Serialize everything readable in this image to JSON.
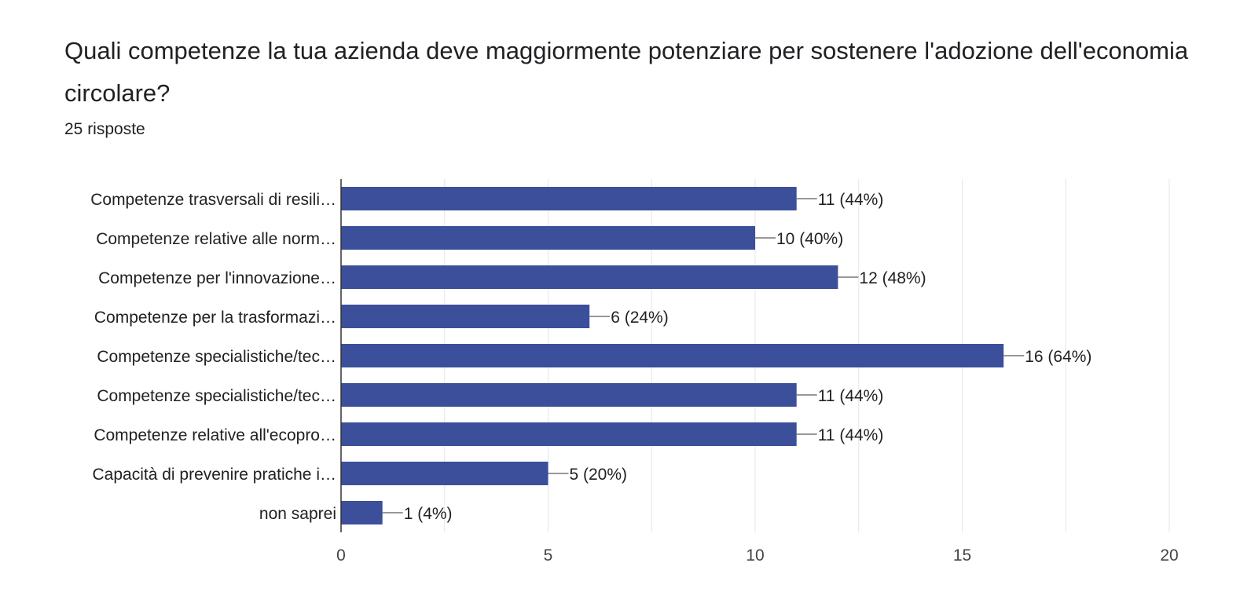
{
  "question": {
    "title": "Quali competenze la tua azienda deve maggiormente potenziare per sostenere l'adozione dell'economia circolare?",
    "response_count": "25 risposte"
  },
  "colors": {
    "bar": "#3b4f9a",
    "grid": "#e6e6e6",
    "axis": "#333333",
    "connector": "#777777"
  },
  "chart_data": {
    "type": "bar",
    "orientation": "horizontal",
    "categories": [
      "Competenze trasversali di resili…",
      "Competenze relative alle norm…",
      "Competenze per l'innovazione…",
      "Competenze per la trasformazi…",
      "Competenze specialistiche/tec…",
      "Competenze specialistiche/tec…",
      "Competenze relative all'ecopro…",
      "Capacità di prevenire pratiche i…",
      "non saprei"
    ],
    "values": [
      11,
      10,
      12,
      6,
      16,
      11,
      11,
      5,
      1
    ],
    "value_labels": [
      "11 (44%)",
      "10 (40%)",
      "12 (48%)",
      "6 (24%)",
      "16 (64%)",
      "11 (44%)",
      "11 (44%)",
      "5 (20%)",
      "1 (4%)"
    ],
    "xlim": [
      0,
      20
    ],
    "x_ticks": [
      0,
      5,
      10,
      15,
      20
    ],
    "grid": true,
    "legend": "none"
  }
}
